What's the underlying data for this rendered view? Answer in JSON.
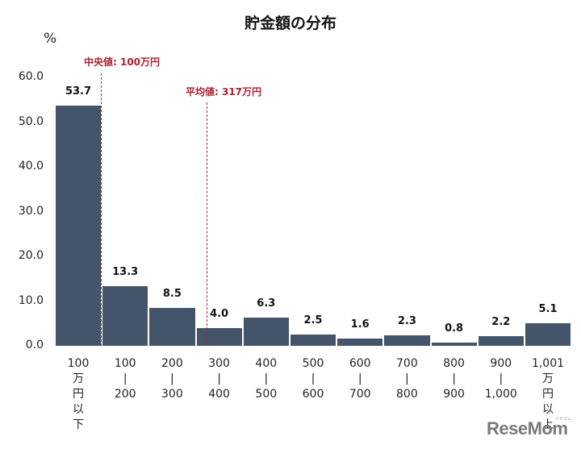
{
  "chart_data": {
    "type": "bar",
    "title": "貯金額の分布",
    "ylabel": "%",
    "xlabel": "",
    "ylim": [
      0,
      60
    ],
    "yticks": [
      "0.0",
      "10.0",
      "20.0",
      "30.0",
      "40.0",
      "50.0",
      "60.0"
    ],
    "grid": false,
    "categories": [
      "100万円以下",
      "100-200",
      "200-300",
      "300-400",
      "400-500",
      "500-600",
      "600-700",
      "700-800",
      "800-900",
      "900-1,000",
      "1,001万円以上"
    ],
    "category_lines": [
      [
        "100",
        "万",
        "円",
        "以",
        "下"
      ],
      [
        "100",
        "|",
        "200"
      ],
      [
        "200",
        "|",
        "300"
      ],
      [
        "300",
        "|",
        "400"
      ],
      [
        "400",
        "|",
        "500"
      ],
      [
        "500",
        "|",
        "600"
      ],
      [
        "600",
        "|",
        "700"
      ],
      [
        "700",
        "|",
        "800"
      ],
      [
        "800",
        "|",
        "900"
      ],
      [
        "900",
        "|",
        "1,000"
      ],
      [
        "1,001",
        "万",
        "円",
        "以",
        "上"
      ]
    ],
    "values": [
      53.7,
      13.3,
      8.5,
      4.0,
      6.3,
      2.5,
      1.6,
      2.3,
      0.8,
      2.2,
      5.1
    ],
    "value_labels": [
      "53.7",
      "13.3",
      "8.5",
      "4.0",
      "6.3",
      "2.5",
      "1.6",
      "2.3",
      "0.8",
      "2.2",
      "5.1"
    ],
    "bar_color": "#44546a",
    "annotations": [
      {
        "label": "中央値: 100万円",
        "x_value": 100,
        "color": "#b02030",
        "style": "dashed"
      },
      {
        "label": "平均値: 317万円",
        "x_value": 317,
        "color": "#b02030",
        "style": "dashed"
      }
    ]
  },
  "watermark": {
    "text": "ReseMom",
    "ruby": "リセマム"
  }
}
